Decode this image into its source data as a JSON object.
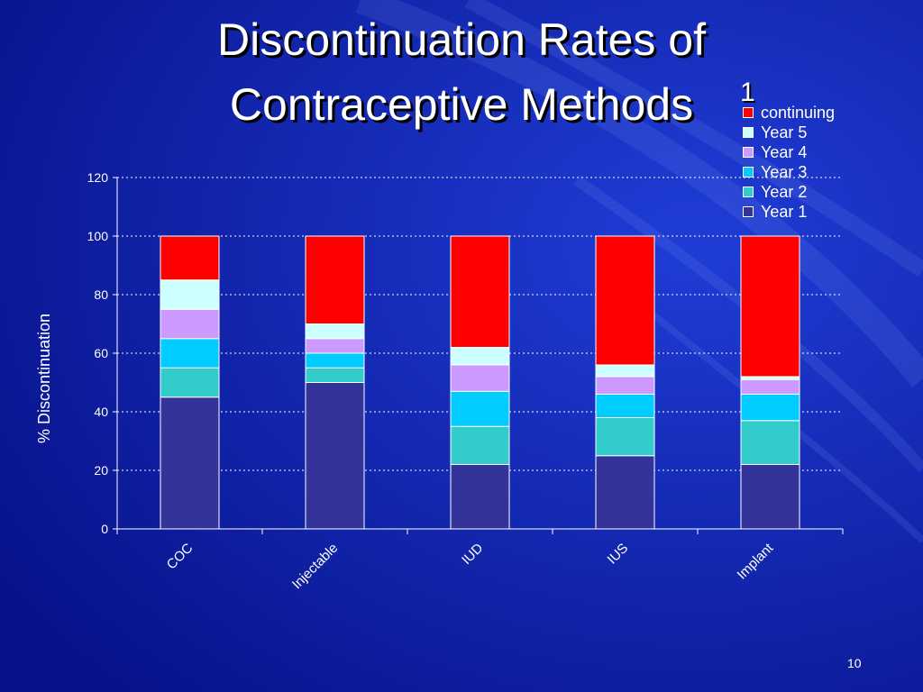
{
  "slide": {
    "title_line1": "Discontinuation Rates of",
    "title_line2": "Contraceptive Methods",
    "title_superscript": "1",
    "page_number": "10"
  },
  "chart_data": {
    "type": "bar",
    "stacked": true,
    "categories": [
      "COC",
      "Injectable",
      "IUD",
      "IUS",
      "Implant"
    ],
    "series": [
      {
        "name": "Year 1",
        "color": "#333399",
        "values": [
          45,
          50,
          22,
          25,
          22
        ]
      },
      {
        "name": "Year 2",
        "color": "#33cccc",
        "values": [
          10,
          5,
          13,
          13,
          15
        ]
      },
      {
        "name": "Year 3",
        "color": "#00ccff",
        "values": [
          10,
          5,
          12,
          8,
          9
        ]
      },
      {
        "name": "Year 4",
        "color": "#cc99ff",
        "values": [
          10,
          5,
          9,
          6,
          5
        ]
      },
      {
        "name": "Year 5",
        "color": "#ccffff",
        "values": [
          10,
          5,
          6,
          4,
          1
        ]
      },
      {
        "name": "continuing",
        "color": "#ff0000",
        "values": [
          15,
          30,
          38,
          44,
          48
        ]
      }
    ],
    "ylabel": "% Discontinuation",
    "xlabel": "",
    "ylim": [
      0,
      120
    ],
    "yticks": [
      0,
      20,
      40,
      60,
      80,
      100,
      120
    ],
    "grid": true,
    "legend_position": "top-right"
  }
}
